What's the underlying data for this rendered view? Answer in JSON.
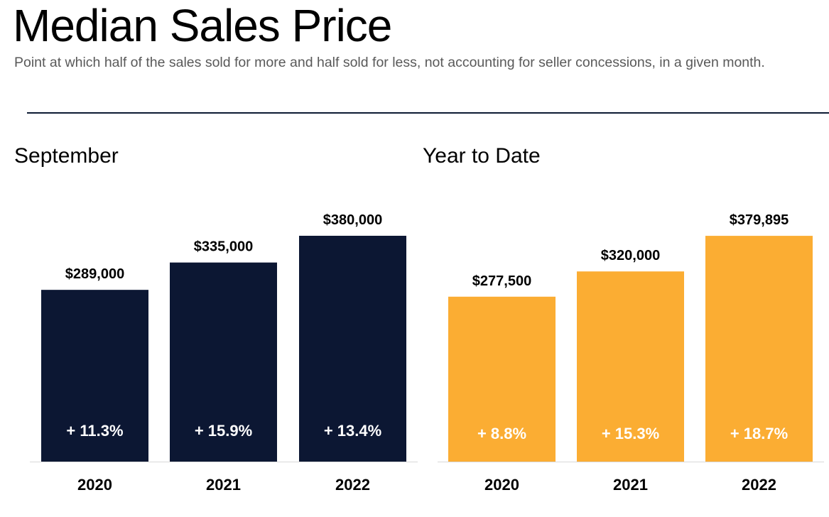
{
  "header": {
    "title": "Median Sales Price",
    "subtitle": "Point at which half of the sales sold for more and half sold for less, not accounting for seller concessions, in a given month."
  },
  "colors": {
    "divider": "#0d1b33",
    "september_bars": "#0c1733",
    "ytd_bars": "#fbad33",
    "baseline": "#d9d9d9"
  },
  "chart_data": [
    {
      "type": "bar",
      "title": "September",
      "categories": [
        "2020",
        "2021",
        "2022"
      ],
      "values": [
        289000,
        335000,
        380000
      ],
      "value_labels": [
        "$289,000",
        "$335,000",
        "$380,000"
      ],
      "change_labels": [
        "+ 11.3%",
        "+ 15.9%",
        "+ 13.4%"
      ],
      "color": "#0c1733",
      "grid": false,
      "legend": "none"
    },
    {
      "type": "bar",
      "title": "Year to Date",
      "categories": [
        "2020",
        "2021",
        "2022"
      ],
      "values": [
        277500,
        320000,
        379895
      ],
      "value_labels": [
        "$277,500",
        "$320,000",
        "$379,895"
      ],
      "change_labels": [
        "+ 8.8%",
        "+ 15.3%",
        "+ 18.7%"
      ],
      "color": "#fbad33",
      "grid": false,
      "legend": "none"
    }
  ]
}
